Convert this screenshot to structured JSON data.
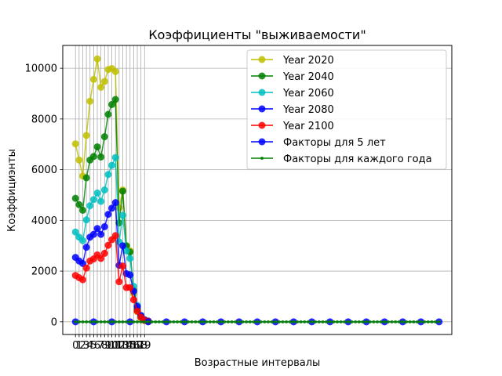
{
  "chart_data": {
    "type": "line",
    "title": "Коэффициенты \"выживаемости\"",
    "xlabel": "Возрастные интервалы",
    "ylabel": "Коэффициэнты",
    "xlim": [
      -3.5,
      103.5
    ],
    "ylim": [
      -500,
      10900
    ],
    "yticks": [
      0,
      2000,
      4000,
      6000,
      8000,
      10000
    ],
    "xticks": [
      0,
      1,
      2,
      3,
      4,
      5,
      6,
      7,
      8,
      9,
      10,
      11,
      12,
      13,
      14,
      15,
      16,
      17,
      18,
      19
    ],
    "xtick_labels": [
      "0",
      "1",
      "2",
      "3",
      "4",
      "5",
      "6",
      "7",
      "8",
      "9",
      "10",
      "11",
      "12",
      "13",
      "14",
      "15",
      "16",
      "17",
      "18",
      "19"
    ],
    "grid": true,
    "legend_position": "top-right",
    "series": [
      {
        "name": "Year 2020",
        "color": "#bfbf00",
        "marker": "large-circle",
        "x": [
          0,
          1,
          2,
          3,
          4,
          5,
          6,
          7,
          8,
          9,
          10,
          11,
          12,
          13,
          14,
          15,
          16,
          17,
          18,
          19,
          20
        ],
        "y": [
          7020,
          6380,
          5750,
          7350,
          8700,
          9560,
          10370,
          9250,
          9480,
          9950,
          9990,
          9870,
          4500,
          5200,
          3000,
          2800,
          1100,
          400,
          150,
          50,
          20
        ]
      },
      {
        "name": "Year 2040",
        "color": "#008000",
        "marker": "large-circle",
        "x": [
          0,
          1,
          2,
          3,
          4,
          5,
          6,
          7,
          8,
          9,
          10,
          11,
          12,
          13,
          14,
          15,
          16,
          17,
          18,
          19,
          20
        ],
        "y": [
          4870,
          4620,
          4400,
          5680,
          6380,
          6520,
          6900,
          6500,
          7300,
          8180,
          8570,
          8770,
          3900,
          5150,
          3000,
          2750,
          1250,
          500,
          200,
          60,
          20
        ]
      },
      {
        "name": "Year 2060",
        "color": "#00bfbf",
        "marker": "large-circle",
        "x": [
          0,
          1,
          2,
          3,
          4,
          5,
          6,
          7,
          8,
          9,
          10,
          11,
          12,
          13,
          14,
          15,
          16,
          17,
          18,
          19,
          20
        ],
        "y": [
          3540,
          3340,
          3200,
          4020,
          4580,
          4820,
          5080,
          4750,
          5200,
          5810,
          6170,
          6480,
          3150,
          4200,
          2800,
          2500,
          1400,
          650,
          250,
          80,
          30
        ]
      },
      {
        "name": "Year 2080",
        "color": "#0000ff",
        "marker": "large-circle",
        "x": [
          0,
          1,
          2,
          3,
          4,
          5,
          6,
          7,
          8,
          9,
          10,
          11,
          12,
          13,
          14,
          15,
          16,
          17,
          18,
          19,
          20
        ],
        "y": [
          2540,
          2400,
          2300,
          2940,
          3340,
          3450,
          3680,
          3450,
          3750,
          4240,
          4480,
          4700,
          2230,
          3000,
          1900,
          1850,
          1200,
          600,
          250,
          80,
          30
        ]
      },
      {
        "name": "Year 2100",
        "color": "#ff0000",
        "marker": "large-circle",
        "x": [
          0,
          1,
          2,
          3,
          4,
          5,
          6,
          7,
          8,
          9,
          10,
          11,
          12,
          13,
          14,
          15,
          16,
          17,
          18,
          19,
          20
        ],
        "y": [
          1830,
          1740,
          1660,
          2120,
          2400,
          2480,
          2640,
          2500,
          2700,
          3020,
          3240,
          3400,
          1580,
          2200,
          1350,
          1350,
          870,
          420,
          180,
          60,
          20
        ]
      },
      {
        "name": "Факторы для 5 лет",
        "color": "#0000ff",
        "marker": "large-circle",
        "x": [
          0,
          5,
          10,
          15,
          20,
          25,
          30,
          35,
          40,
          45,
          50,
          55,
          60,
          65,
          70,
          75,
          80,
          85,
          90,
          95,
          100
        ],
        "y": [
          0,
          0,
          0,
          0,
          0,
          0,
          0,
          0,
          0,
          0,
          0,
          0,
          0,
          0,
          0,
          0,
          0,
          0,
          0,
          0,
          0
        ]
      },
      {
        "name": "Факторы для каждого года",
        "color": "#008000",
        "marker": "small-dot",
        "x": [
          0,
          1,
          2,
          3,
          4,
          5,
          6,
          7,
          8,
          9,
          10,
          11,
          12,
          13,
          14,
          15,
          16,
          17,
          18,
          19,
          20,
          21,
          22,
          23,
          24,
          25,
          26,
          27,
          28,
          29,
          30,
          31,
          32,
          33,
          34,
          35,
          36,
          37,
          38,
          39,
          40,
          41,
          42,
          43,
          44,
          45,
          46,
          47,
          48,
          49,
          50,
          51,
          52,
          53,
          54,
          55,
          56,
          57,
          58,
          59,
          60,
          61,
          62,
          63,
          64,
          65,
          66,
          67,
          68,
          69,
          70,
          71,
          72,
          73,
          74,
          75,
          76,
          77,
          78,
          79,
          80,
          81,
          82,
          83,
          84,
          85,
          86,
          87,
          88,
          89,
          90,
          91,
          92,
          93,
          94,
          95,
          96,
          97,
          98,
          99,
          100
        ],
        "y": [
          0,
          0,
          0,
          0,
          0,
          0,
          0,
          0,
          0,
          0,
          0,
          0,
          0,
          0,
          0,
          0,
          0,
          0,
          0,
          0,
          0,
          0,
          0,
          0,
          0,
          0,
          0,
          0,
          0,
          0,
          0,
          0,
          0,
          0,
          0,
          0,
          0,
          0,
          0,
          0,
          0,
          0,
          0,
          0,
          0,
          0,
          0,
          0,
          0,
          0,
          0,
          0,
          0,
          0,
          0,
          0,
          0,
          0,
          0,
          0,
          0,
          0,
          0,
          0,
          0,
          0,
          0,
          0,
          0,
          0,
          0,
          0,
          0,
          0,
          0,
          0,
          0,
          0,
          0,
          0,
          0,
          0,
          0,
          0,
          0,
          0,
          0,
          0,
          0,
          0,
          0,
          0,
          0,
          0,
          0,
          0,
          0,
          0,
          0,
          0,
          0
        ]
      }
    ]
  }
}
